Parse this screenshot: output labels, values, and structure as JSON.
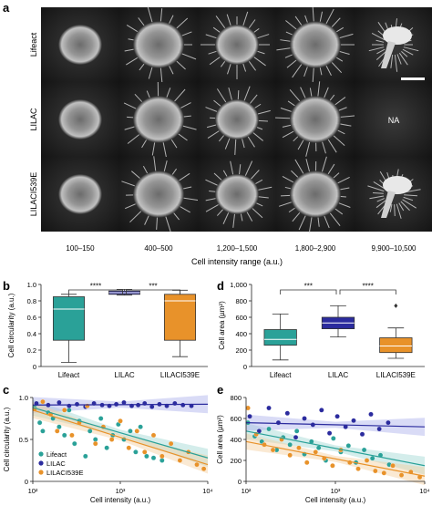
{
  "panel_letters": [
    "a",
    "b",
    "c",
    "d",
    "e"
  ],
  "colors": {
    "lifeact": "#2aa198",
    "lilac": "#2b2b9e",
    "lilac_i539e": "#e8922a",
    "lifeact_light": "#9fd8d2",
    "lilac_light": "#aab0ea",
    "lilac_i539e_light": "#f5cf9e"
  },
  "microscopy": {
    "row_labels": [
      "Lifeact",
      "LILAC",
      "LILACI539E"
    ],
    "columns": [
      "100–150",
      "400–500",
      "1,200–1,500",
      "1,800–2,900",
      "9,900–10,500"
    ],
    "xlabel": "Cell intensity range (a.u.)",
    "na_label": "NA"
  },
  "chart_data": [
    {
      "id": "b",
      "type": "box",
      "categories": [
        "Lifeact",
        "LILAC",
        "LILACI539E"
      ],
      "ylabel": "Cell circularity (a.u.)",
      "ylim": [
        0,
        1.0
      ],
      "yticks": [
        "0",
        "0.2",
        "0.4",
        "0.6",
        "0.8",
        "1.0"
      ],
      "boxes": [
        {
          "name": "Lifeact",
          "min": 0.05,
          "q1": 0.32,
          "median": 0.7,
          "q3": 0.85,
          "max": 0.88
        },
        {
          "name": "LILAC",
          "min": 0.87,
          "q1": 0.88,
          "median": 0.9,
          "q3": 0.92,
          "max": 0.94
        },
        {
          "name": "LILACI539E",
          "min": 0.12,
          "q1": 0.32,
          "median": 0.8,
          "q3": 0.88,
          "max": 0.93
        }
      ],
      "significance": [
        {
          "from": 0,
          "to": 1,
          "label": "****"
        },
        {
          "from": 1,
          "to": 2,
          "label": "***"
        }
      ]
    },
    {
      "id": "d",
      "type": "box",
      "categories": [
        "Lifeact",
        "LILAC",
        "LILACI539E"
      ],
      "ylabel": "Cell area (µm²)",
      "ylim": [
        0,
        1000
      ],
      "yticks": [
        "0",
        "200",
        "400",
        "600",
        "800",
        "1,000"
      ],
      "boxes": [
        {
          "name": "Lifeact",
          "min": 80,
          "q1": 260,
          "median": 330,
          "q3": 450,
          "max": 640
        },
        {
          "name": "LILAC",
          "min": 360,
          "q1": 460,
          "median": 530,
          "q3": 600,
          "max": 740
        },
        {
          "name": "LILACI539E",
          "min": 100,
          "q1": 170,
          "median": 250,
          "q3": 350,
          "max": 470,
          "outliers": [
            740
          ]
        }
      ],
      "significance": [
        {
          "from": 0,
          "to": 1,
          "label": "***"
        },
        {
          "from": 1,
          "to": 2,
          "label": "****"
        }
      ]
    },
    {
      "id": "c",
      "type": "scatter",
      "xscale": "log",
      "xlim": [
        100,
        10000
      ],
      "xtick_values": [
        100,
        1000,
        10000
      ],
      "xticks": [
        "10²",
        "10³",
        "10⁴"
      ],
      "xlabel": "Cell intensity (a.u.)",
      "ylabel": "Cell circularity (a.u.)",
      "ylim": [
        0,
        1.0
      ],
      "yticks": [
        "0",
        "0.5",
        "1.0"
      ],
      "legend": [
        "Lifeact",
        "LILAC",
        "LILACI539E"
      ],
      "legend_position": "bottom-left",
      "series": [
        {
          "name": "Lifeact",
          "x": [
            105,
            120,
            130,
            150,
            170,
            200,
            230,
            260,
            300,
            340,
            400,
            450,
            520,
            600,
            700,
            820,
            950,
            1100,
            1300,
            1500,
            1700,
            2000,
            2400,
            3000
          ],
          "y": [
            0.88,
            0.7,
            0.6,
            0.82,
            0.75,
            0.65,
            0.55,
            0.85,
            0.45,
            0.72,
            0.3,
            0.6,
            0.5,
            0.75,
            0.4,
            0.55,
            0.68,
            0.5,
            0.6,
            0.35,
            0.65,
            0.3,
            0.28,
            0.25
          ],
          "fit": [
            [
              100,
              0.88
            ],
            [
              10000,
              0.28
            ]
          ]
        },
        {
          "name": "LILAC",
          "x": [
            110,
            150,
            200,
            260,
            320,
            400,
            500,
            620,
            750,
            900,
            1100,
            1350,
            1600,
            1900,
            2300,
            2800,
            3400,
            4200,
            5200,
            6500
          ],
          "y": [
            0.93,
            0.91,
            0.94,
            0.9,
            0.92,
            0.89,
            0.93,
            0.91,
            0.9,
            0.92,
            0.94,
            0.9,
            0.91,
            0.93,
            0.89,
            0.92,
            0.9,
            0.93,
            0.91,
            0.9
          ],
          "fit": [
            [
              100,
              0.91
            ],
            [
              10000,
              0.92
            ]
          ]
        },
        {
          "name": "LILACI539E",
          "x": [
            105,
            130,
            160,
            190,
            230,
            280,
            340,
            420,
            520,
            640,
            800,
            1000,
            1250,
            1550,
            1900,
            2400,
            3000,
            3800,
            4800,
            6000,
            7500,
            9000
          ],
          "y": [
            0.86,
            0.95,
            0.8,
            0.6,
            0.85,
            0.55,
            0.7,
            0.9,
            0.45,
            0.65,
            0.5,
            0.72,
            0.4,
            0.6,
            0.35,
            0.55,
            0.3,
            0.45,
            0.25,
            0.35,
            0.2,
            0.15
          ],
          "fit": [
            [
              100,
              0.85
            ],
            [
              10000,
              0.2
            ]
          ]
        }
      ]
    },
    {
      "id": "e",
      "type": "scatter",
      "xscale": "log",
      "xlim": [
        100,
        10000
      ],
      "xtick_values": [
        100,
        1000,
        10000
      ],
      "xticks": [
        "10²",
        "10³",
        "10⁴"
      ],
      "xlabel": "Cell intensity (a.u.)",
      "ylabel": "Cell area (µm²)",
      "ylim": [
        0,
        800
      ],
      "yticks": [
        "0",
        "200",
        "400",
        "600",
        "800"
      ],
      "series": [
        {
          "name": "Lifeact",
          "x": [
            105,
            125,
            150,
            180,
            220,
            260,
            310,
            370,
            450,
            540,
            650,
            780,
            950,
            1150,
            1400,
            1700,
            2100,
            2600,
            3200,
            4000
          ],
          "y": [
            560,
            430,
            380,
            500,
            300,
            420,
            350,
            480,
            260,
            380,
            320,
            200,
            410,
            280,
            340,
            180,
            300,
            220,
            250,
            160
          ],
          "fit": [
            [
              100,
              480
            ],
            [
              10000,
              150
            ]
          ]
        },
        {
          "name": "LILAC",
          "x": [
            110,
            140,
            180,
            230,
            290,
            360,
            450,
            560,
            700,
            860,
            1050,
            1300,
            1600,
            2000,
            2500,
            3100,
            3900
          ],
          "y": [
            620,
            480,
            700,
            560,
            650,
            420,
            600,
            540,
            680,
            460,
            620,
            520,
            580,
            450,
            640,
            500,
            560
          ],
          "fit": [
            [
              100,
              560
            ],
            [
              10000,
              520
            ]
          ]
        },
        {
          "name": "LILACI539E",
          "x": [
            105,
            130,
            160,
            200,
            250,
            310,
            390,
            480,
            600,
            750,
            930,
            1150,
            1450,
            1800,
            2250,
            2800,
            3500,
            4400,
            5500,
            7000,
            8800
          ],
          "y": [
            700,
            450,
            350,
            300,
            400,
            250,
            320,
            180,
            280,
            220,
            150,
            300,
            180,
            120,
            200,
            100,
            80,
            150,
            60,
            90,
            40
          ],
          "fit": [
            [
              100,
              380
            ],
            [
              10000,
              50
            ]
          ]
        }
      ]
    }
  ]
}
